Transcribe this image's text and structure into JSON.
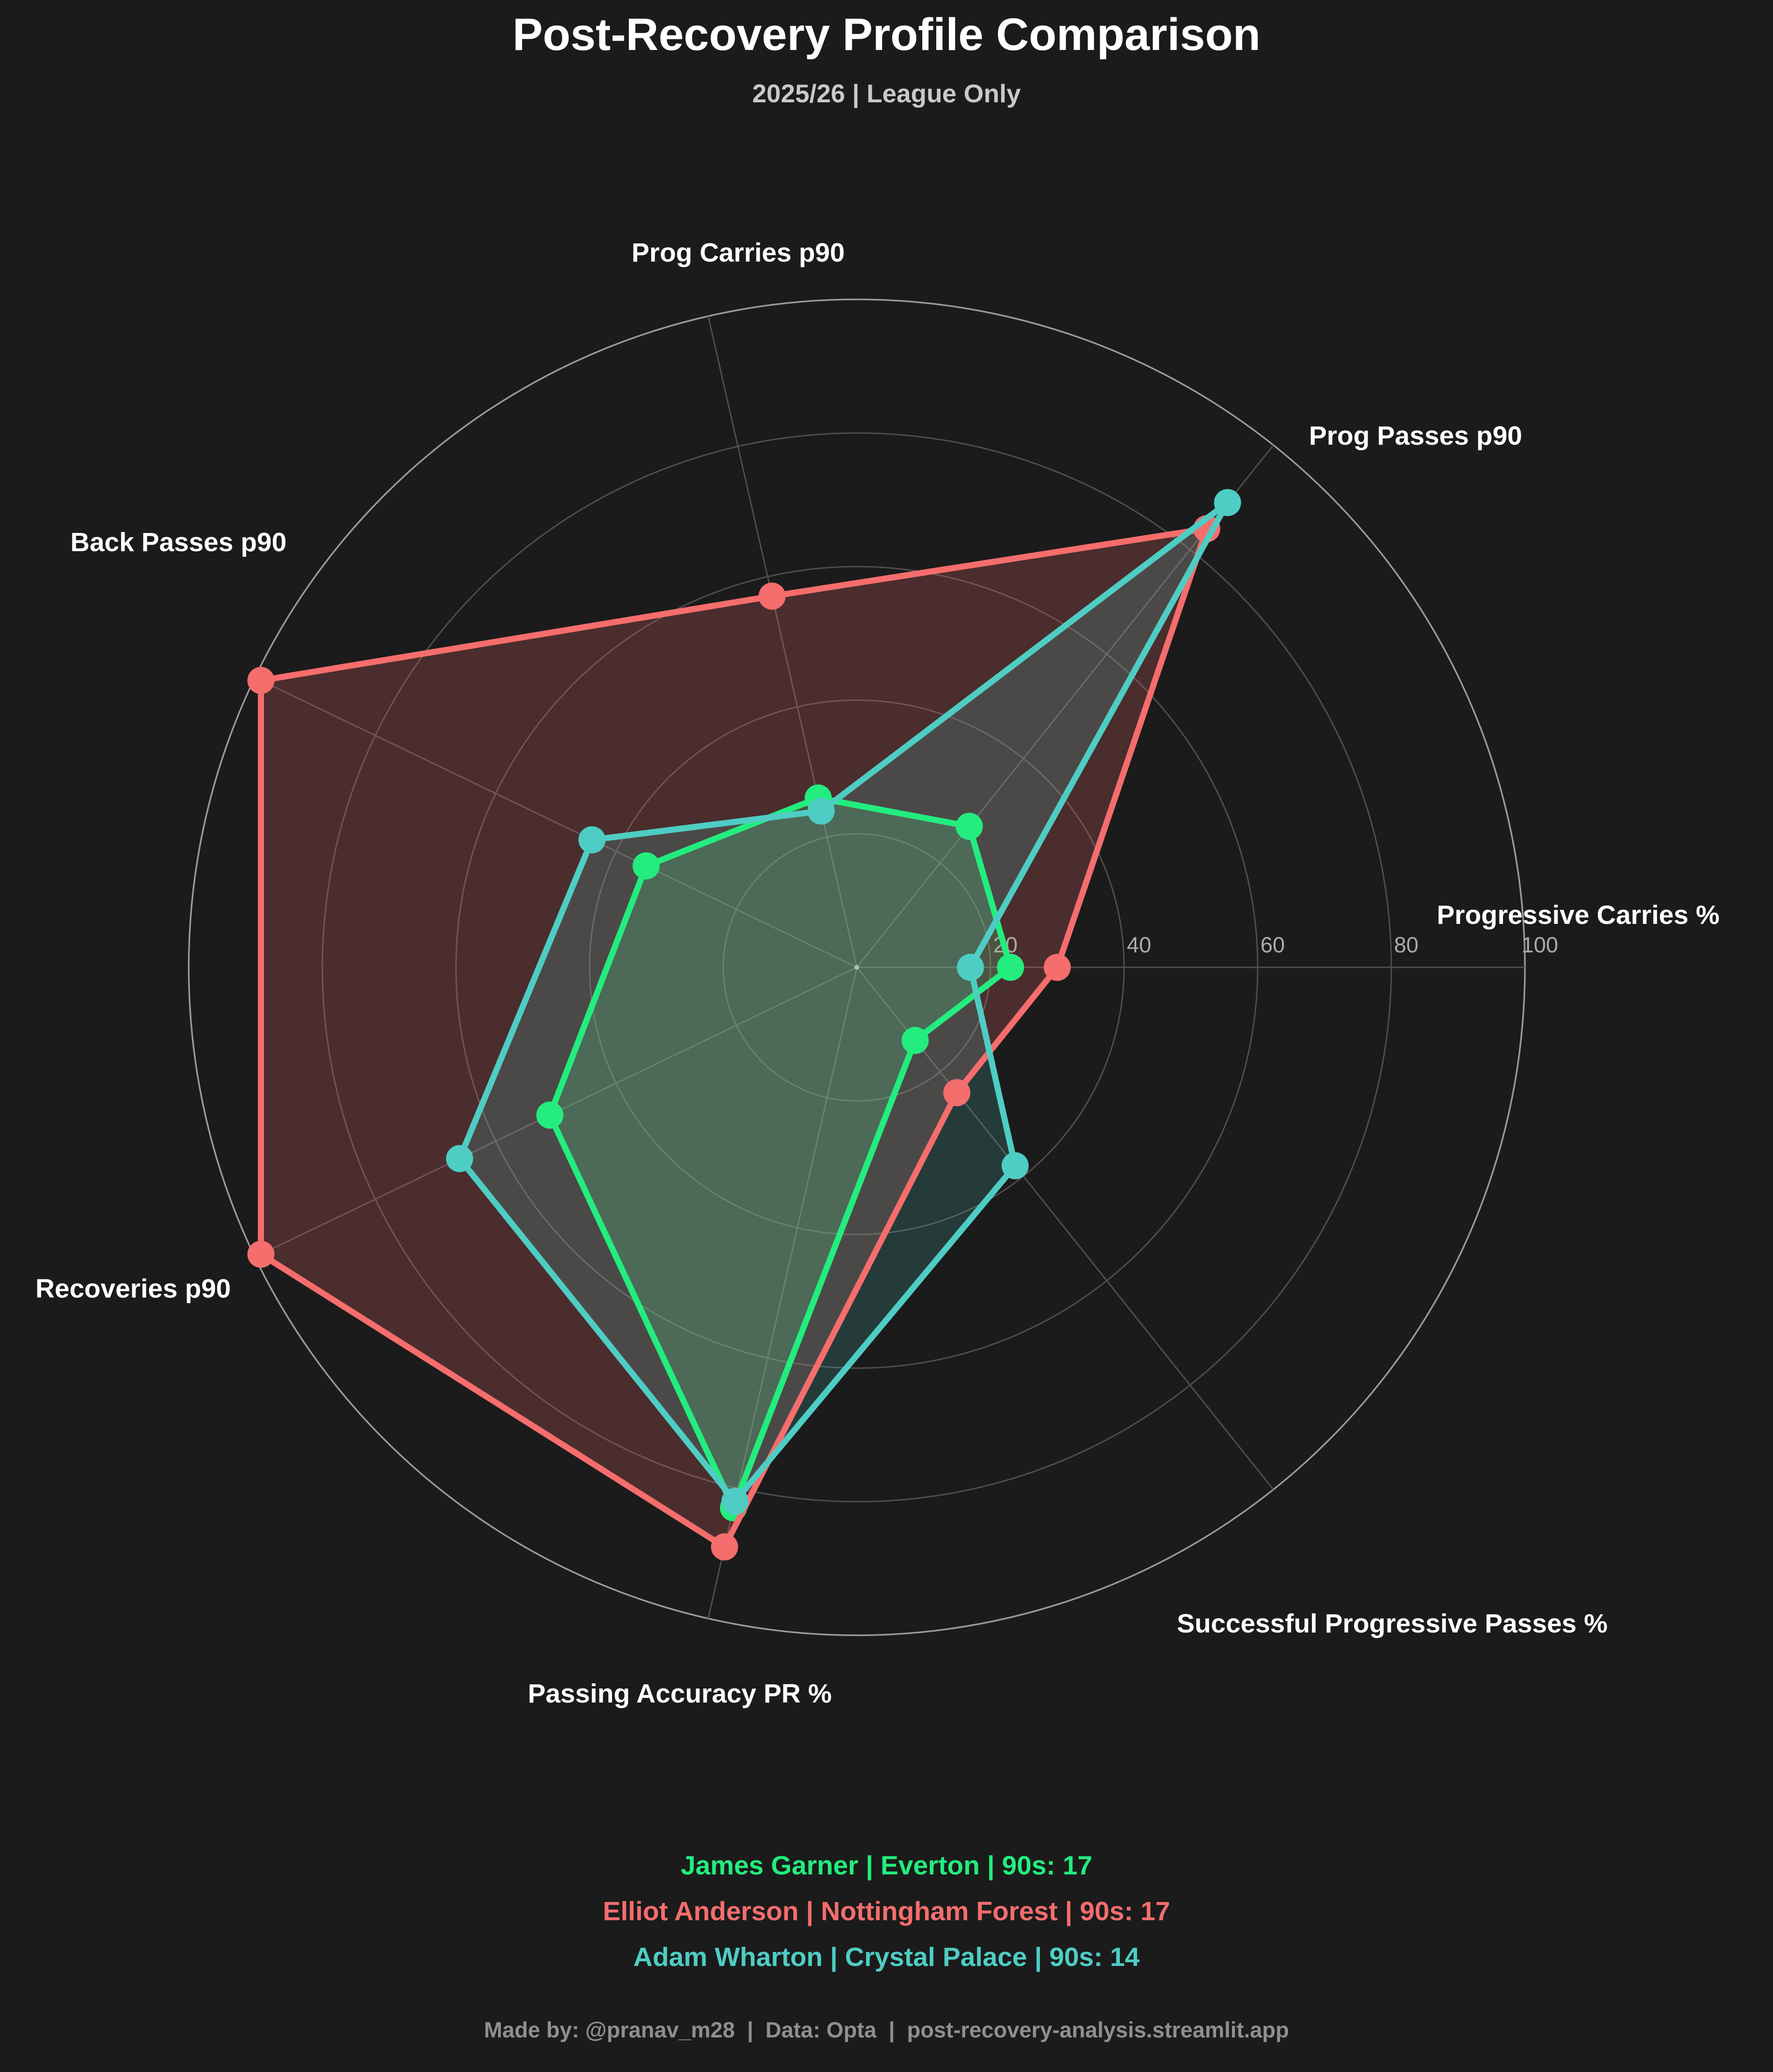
{
  "title": "Post-Recovery Profile Comparison",
  "subtitle": "2025/26 | League Only",
  "footer": "Made by: @pranav_m28  |  Data: Opta  |  post-recovery-analysis.streamlit.app",
  "chart_data": {
    "type": "radar",
    "title": "Post-Recovery Profile Comparison",
    "subtitle": "2025/26 | League Only",
    "rmax": 100,
    "ticks": [
      20,
      40,
      60,
      80,
      100
    ],
    "grid": true,
    "start_axis_angle_deg": 0,
    "direction": "counterclockwise",
    "categories": [
      "Progressive Carries %",
      "Prog Passes p90",
      "Prog Carries p90",
      "Back Passes p90",
      "Recoveries p90",
      "Passing Accuracy PR %",
      "Successful Progressive Passes %"
    ],
    "series": [
      {
        "name": "James Garner | Everton | 90s: 17",
        "color": "#23ED7E",
        "values": [
          23,
          27,
          26,
          35,
          51,
          83,
          14
        ]
      },
      {
        "name": "Elliot Anderson | Nottingham Forest | 90s: 17",
        "color": "#F56D6D",
        "values": [
          30,
          84,
          57,
          99,
          99,
          89,
          24
        ]
      },
      {
        "name": "Adam Wharton | Crystal Palace | 90s: 14",
        "color": "#4ECDC4",
        "values": [
          17,
          89,
          24,
          44,
          66,
          82,
          38
        ]
      }
    ],
    "legend_position": "bottom-center"
  }
}
